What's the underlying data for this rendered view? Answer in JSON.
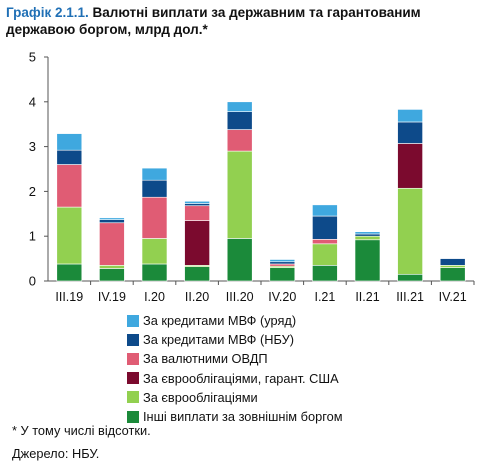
{
  "title": {
    "lead": "Графік 2.1.1.",
    "rest": "Валютні виплати за державним та гарантованим державою боргом, млрд дол.*"
  },
  "chart_data": {
    "type": "bar",
    "stacked": true,
    "categories": [
      "III.19",
      "IV.19",
      "I.20",
      "II.20",
      "III.20",
      "IV.20",
      "I.21",
      "II.21",
      "III.21",
      "IV.21"
    ],
    "ylim": [
      0,
      5
    ],
    "yticks": [
      0,
      1,
      2,
      3,
      4,
      5
    ],
    "grid": false,
    "legend_position": "bottom",
    "series": [
      {
        "name": "Інші виплати за зовнішнім боргом",
        "color": "#1b8a3a",
        "values": [
          0.38,
          0.28,
          0.38,
          0.32,
          0.95,
          0.3,
          0.35,
          0.92,
          0.15,
          0.3
        ]
      },
      {
        "name": " За єврооблігаціями",
        "color": "#92d050",
        "values": [
          1.27,
          0.07,
          0.57,
          0.03,
          1.95,
          0.03,
          0.48,
          0.08,
          1.92,
          0.05
        ]
      },
      {
        "name": "За єврооблігаціями, гарант. США",
        "color": "#7b0a2e",
        "values": [
          0.0,
          0.0,
          0.0,
          1.0,
          0.0,
          0.0,
          0.0,
          0.0,
          1.0,
          0.0
        ]
      },
      {
        "name": "За валютними ОВДП",
        "color": "#e05c74",
        "values": [
          0.95,
          0.95,
          0.92,
          0.33,
          0.48,
          0.05,
          0.1,
          0.0,
          0.0,
          0.0
        ]
      },
      {
        "name": "За кредитами МВФ (НБУ)",
        "color": "#0d4a8a",
        "values": [
          0.32,
          0.07,
          0.38,
          0.05,
          0.4,
          0.05,
          0.52,
          0.05,
          0.48,
          0.15
        ]
      },
      {
        "name": "За кредитами МВФ (уряд)",
        "color": "#3fa8df",
        "values": [
          0.37,
          0.04,
          0.27,
          0.05,
          0.22,
          0.05,
          0.25,
          0.05,
          0.28,
          0.0
        ]
      }
    ]
  },
  "legend_order": [
    5,
    4,
    3,
    2,
    1,
    0
  ],
  "footnote": "* У тому числі відсотки.",
  "source": "Джерело: НБУ."
}
